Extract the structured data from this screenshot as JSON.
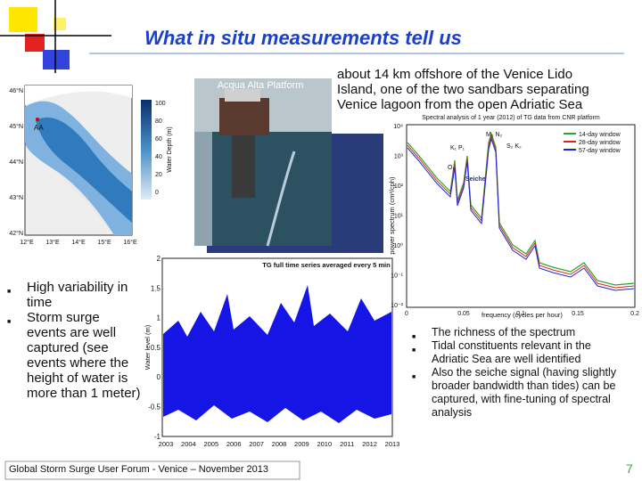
{
  "title": "What in situ measurements tell us",
  "map": {
    "lat_labels": [
      "46°N",
      "45°N",
      "44°N",
      "43°N",
      "42°N"
    ],
    "lon_labels": [
      "12°E",
      "13°E",
      "14°E",
      "15°E",
      "16°E"
    ],
    "site_label": "AA",
    "colorbar_ticks": [
      "100",
      "80",
      "60",
      "40",
      "20",
      "0"
    ],
    "colorbar_label": "Water Depth (m)"
  },
  "photo": {
    "label": "Acqua Alta Platform"
  },
  "intro": [
    "about 14 km offshore of the Venice Lido",
    "Island, one of the two sandbars separating",
    "Venice lagoon from the open Adriatic Sea"
  ],
  "spectrum": {
    "title": "Spectral analysis of 1 year (2012) of TG data from CNR platform",
    "legend": [
      "14-day window",
      "28-day window",
      "57-day window"
    ],
    "ylabel": "power spectrum (cm²/cph)",
    "xlabel": "frequency (cycles per hour)",
    "xticks": [
      "0",
      "0.05",
      "0.1",
      "0.15",
      "0.2"
    ],
    "yticks": [
      "10⁴",
      "10³",
      "10²",
      "10¹",
      "10⁰",
      "10⁻¹",
      "10⁻²"
    ],
    "annotations": [
      "M₂ N₂",
      "K₁ P₁",
      "S₂ K₂",
      "O₁",
      "Seiche"
    ]
  },
  "timeseries": {
    "title": "TG full time series averaged every 5 min",
    "ylabel": "Water level (m)",
    "yticks": [
      "2",
      "1.5",
      "1",
      "0.5",
      "0",
      "-0.5",
      "-1"
    ],
    "xticks": [
      "2003",
      "2004",
      "2005",
      "2006",
      "2007",
      "2008",
      "2009",
      "2010",
      "2011",
      "2012",
      "2013"
    ]
  },
  "left_bullets": [
    "High variability in time",
    "Storm surge events are well captured (see events where the height of water is more than 1 meter)"
  ],
  "right_bullets": [
    "The richness of the spectrum",
    "Tidal constituents relevant in the Adriatic Sea are well identified",
    "Also the seiche signal (having slightly broader bandwidth than tides) can be captured, with fine-tuning of spectral analysis"
  ],
  "footer": "Global Storm Surge User Forum - Venice – November 2013",
  "page_number": "7"
}
